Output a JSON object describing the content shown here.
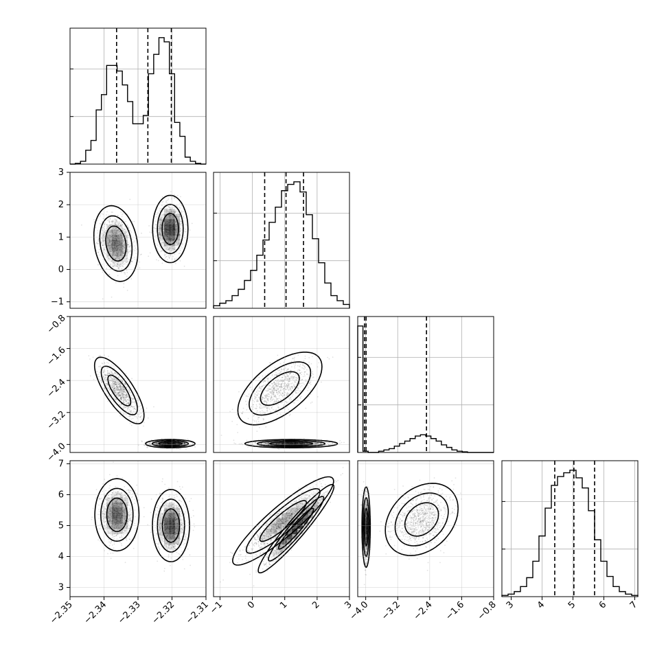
{
  "chart_data": {
    "type": "corner",
    "grid": true,
    "parameters": [
      {
        "range": [
          -2.35,
          -2.31
        ],
        "ticks": [
          -2.35,
          -2.34,
          -2.33,
          -2.32,
          -2.31
        ],
        "tick_labels": [
          "−2.35",
          "−2.34",
          "−2.33",
          "−2.32",
          "−2.31"
        ],
        "quantiles": [
          -2.3363,
          -2.3271,
          -2.3202
        ],
        "histogram": [
          0,
          0.005,
          0.02,
          0.1,
          0.17,
          0.39,
          0.5,
          0.71,
          0.71,
          0.67,
          0.57,
          0.45,
          0.29,
          0.29,
          0.35,
          0.65,
          0.79,
          0.91,
          0.88,
          0.65,
          0.3,
          0.2,
          0.05,
          0.02,
          0.005,
          0
        ]
      },
      {
        "range": [
          -1.2,
          3.0
        ],
        "ticks": [
          -1,
          0,
          1,
          2,
          3
        ],
        "tick_labels": [
          "−1",
          "0",
          "1",
          "2",
          "3"
        ],
        "quantiles": [
          0.38,
          1.04,
          1.58
        ],
        "histogram": [
          0.02,
          0.04,
          0.06,
          0.1,
          0.15,
          0.22,
          0.3,
          0.42,
          0.54,
          0.68,
          0.8,
          0.93,
          0.98,
          1.0,
          0.92,
          0.74,
          0.55,
          0.36,
          0.2,
          0.1,
          0.06,
          0.03
        ]
      },
      {
        "range": [
          -4.2,
          -0.8
        ],
        "ticks": [
          -4.0,
          -3.2,
          -2.4,
          -1.6,
          -0.8
        ],
        "tick_labels": [
          "−4.0",
          "−3.2",
          "−2.4",
          "−1.6",
          "−0.8"
        ],
        "quantiles": [
          -4.03,
          -3.99,
          -2.48
        ],
        "histogram": [
          1.0,
          0.01,
          0.0,
          0.0,
          0.01,
          0.02,
          0.03,
          0.05,
          0.07,
          0.09,
          0.11,
          0.13,
          0.14,
          0.13,
          0.11,
          0.09,
          0.06,
          0.04,
          0.02,
          0.01,
          0.005,
          0.0,
          0.0,
          0.0,
          0.0,
          0.0
        ]
      },
      {
        "range": [
          2.7,
          7.1
        ],
        "ticks": [
          3,
          4,
          5,
          6,
          7
        ],
        "tick_labels": [
          "3",
          "4",
          "5",
          "6",
          "7"
        ],
        "quantiles": [
          4.41,
          5.03,
          5.7
        ],
        "histogram": [
          0.01,
          0.02,
          0.04,
          0.08,
          0.15,
          0.28,
          0.48,
          0.7,
          0.88,
          0.95,
          0.98,
          1.0,
          0.94,
          0.86,
          0.68,
          0.45,
          0.28,
          0.16,
          0.08,
          0.04,
          0.02,
          0.01
        ]
      }
    ],
    "y_tick_labels_rows": [
      {
        "row": 1,
        "ticks": [
          -1,
          0,
          1,
          2,
          3
        ],
        "labels": [
          "−1",
          "0",
          "1",
          "2",
          "3"
        ]
      },
      {
        "row": 2,
        "ticks": [
          -4.0,
          -3.2,
          -2.4,
          -1.6,
          -0.8
        ],
        "labels": [
          "−4.0",
          "−3.2",
          "−2.4",
          "−1.6",
          "−0.8"
        ]
      },
      {
        "row": 3,
        "ticks": [
          3,
          4,
          5,
          6,
          7
        ],
        "labels": [
          "3",
          "4",
          "5",
          "6",
          "7"
        ]
      }
    ],
    "joint_modes": [
      {
        "pair": [
          1,
          0
        ],
        "modes": [
          {
            "mx": -2.3365,
            "my": 0.8,
            "sx": 0.0025,
            "sy": 0.45,
            "rho": -0.2,
            "w": 0.5
          },
          {
            "mx": -2.3205,
            "my": 1.25,
            "sx": 0.002,
            "sy": 0.4,
            "rho": 0.0,
            "w": 0.5
          }
        ]
      },
      {
        "pair": [
          2,
          0
        ],
        "modes": [
          {
            "mx": -2.3355,
            "my": -2.65,
            "sx": 0.0028,
            "sy": 0.32,
            "rho": -0.75,
            "w": 0.5
          },
          {
            "mx": -2.3205,
            "my": -3.98,
            "sx": 0.0028,
            "sy": 0.04,
            "rho": 0.0,
            "w": 0.5
          }
        ]
      },
      {
        "pair": [
          2,
          1
        ],
        "modes": [
          {
            "mx": 0.85,
            "my": -2.6,
            "sx": 0.5,
            "sy": 0.35,
            "rho": 0.6,
            "w": 0.5
          },
          {
            "mx": 1.2,
            "my": -3.98,
            "sx": 0.55,
            "sy": 0.04,
            "rho": 0.0,
            "w": 0.5
          }
        ]
      },
      {
        "pair": [
          3,
          0
        ],
        "modes": [
          {
            "mx": -2.3362,
            "my": 5.35,
            "sx": 0.0025,
            "sy": 0.45,
            "rho": 0.0,
            "w": 0.5
          },
          {
            "mx": -2.3203,
            "my": 5.0,
            "sx": 0.0021,
            "sy": 0.45,
            "rho": 0.0,
            "w": 0.5
          }
        ]
      },
      {
        "pair": [
          3,
          1
        ],
        "modes": [
          {
            "mx": 0.95,
            "my": 5.15,
            "sx": 0.6,
            "sy": 0.55,
            "rho": 0.9,
            "w": 0.5
          },
          {
            "mx": 1.35,
            "my": 4.9,
            "sx": 0.45,
            "sy": 0.55,
            "rho": 0.95,
            "w": 0.5
          }
        ]
      },
      {
        "pair": [
          3,
          2
        ],
        "modes": [
          {
            "mx": -3.99,
            "my": 4.95,
            "sx": 0.04,
            "sy": 0.5,
            "rho": 0.0,
            "w": 0.5
          },
          {
            "mx": -2.6,
            "my": 5.2,
            "sx": 0.35,
            "sy": 0.45,
            "rho": 0.3,
            "w": 0.5
          }
        ]
      }
    ]
  }
}
